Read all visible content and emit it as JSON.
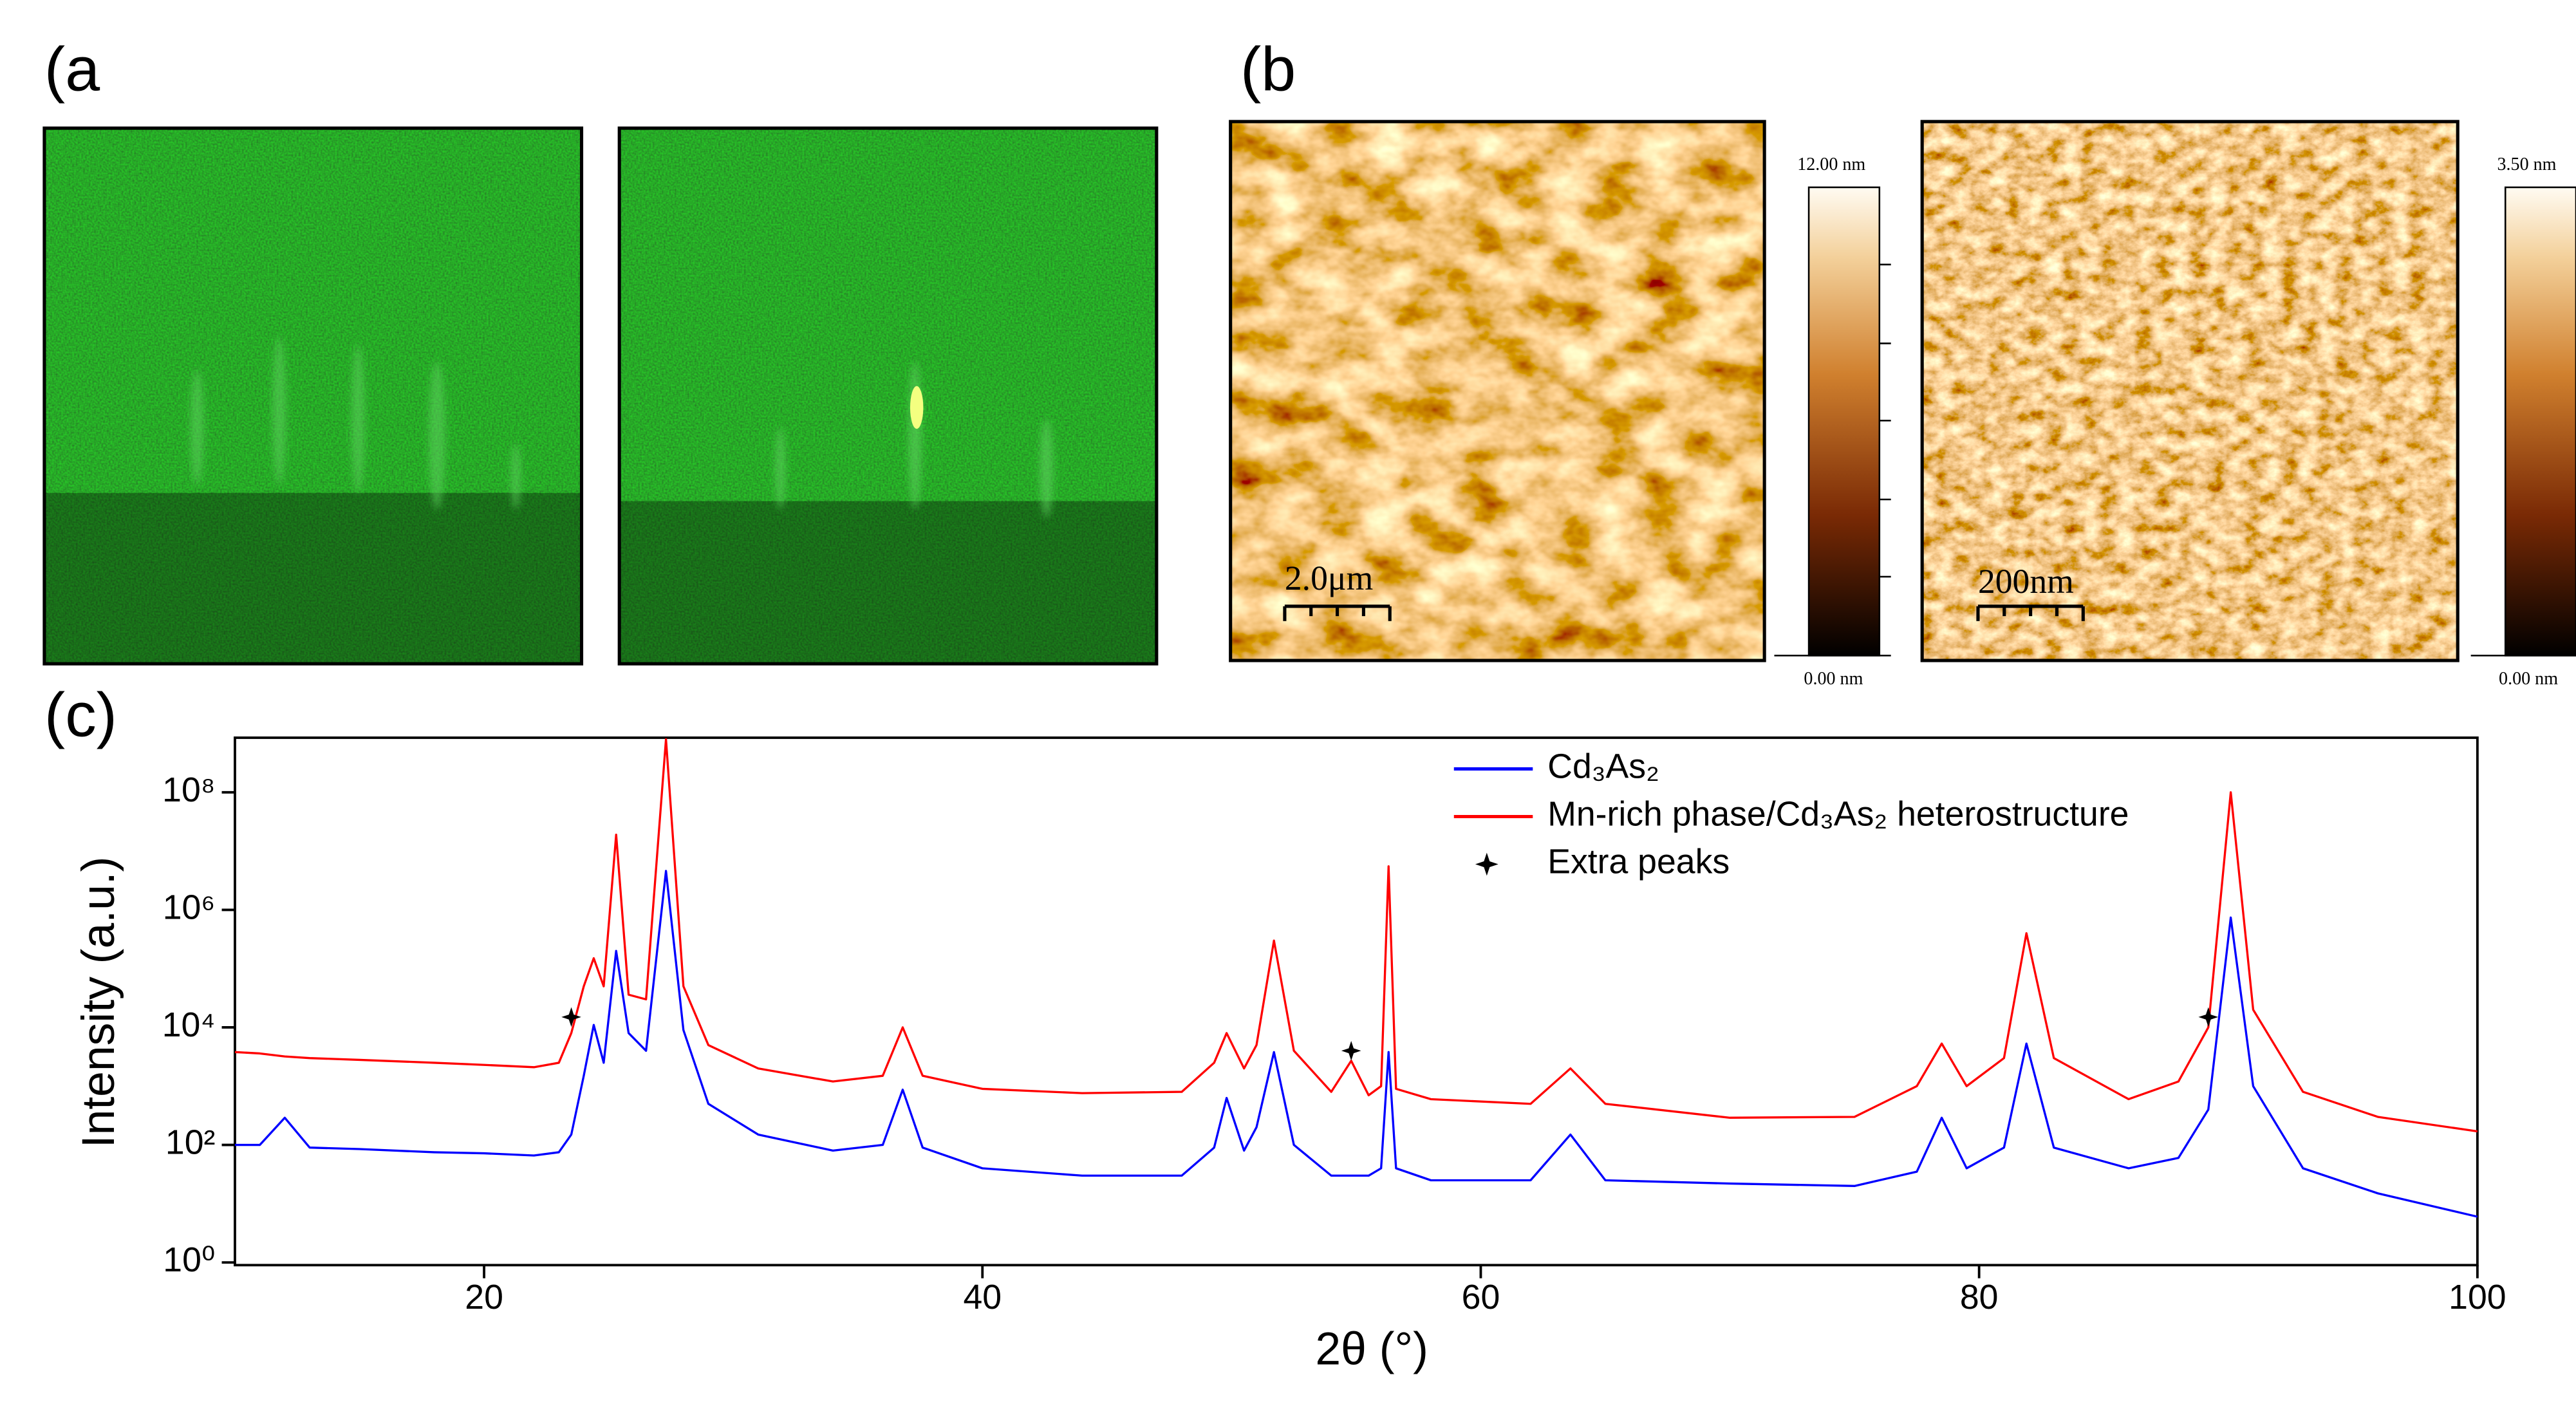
{
  "panel_labels": {
    "a": "(a",
    "a_close": ")",
    "b": "(b",
    "c": "(c)"
  },
  "afm": [
    {
      "scale_bar": "2.0μm",
      "colorbar_max": "12.00 nm",
      "colorbar_min": "0.00 nm"
    },
    {
      "scale_bar": "200nm",
      "colorbar_max": "3.50 nm",
      "colorbar_min": "0.00 nm"
    }
  ],
  "chart_data": {
    "type": "line",
    "xlabel": "2θ (°)",
    "ylabel": "Intensity (a.u.)",
    "yscale": "log",
    "xlim": [
      10,
      100
    ],
    "ylim": [
      0.9,
      850000000
    ],
    "xticks": [
      20,
      40,
      60,
      80,
      100
    ],
    "yticks": [
      {
        "value": 1,
        "label": "10⁰"
      },
      {
        "value": 100,
        "label": "10²"
      },
      {
        "value": 10000,
        "label": "10⁴"
      },
      {
        "value": 1000000,
        "label": "10⁶"
      },
      {
        "value": 100000000,
        "label": "10⁸"
      }
    ],
    "x": [
      10,
      11,
      12,
      13,
      15,
      18,
      20,
      22,
      23,
      23.5,
      24,
      24.4,
      24.8,
      25.3,
      25.8,
      26.5,
      27.3,
      28,
      29,
      31,
      34,
      36,
      36.8,
      37.6,
      40,
      44,
      48,
      49.3,
      49.8,
      50.5,
      51,
      51.7,
      52.5,
      54,
      54.8,
      55.5,
      56,
      56.3,
      56.6,
      58,
      62,
      63.6,
      65,
      70,
      75,
      77.5,
      78.5,
      79.5,
      81,
      81.9,
      83,
      86,
      88,
      89.2,
      90.1,
      91,
      93,
      96,
      100
    ],
    "series": [
      {
        "name": "Cd₃As₂",
        "color": "#0000ff",
        "values": [
          100,
          100,
          290,
          90,
          85,
          75,
          72,
          66,
          75,
          150,
          1500,
          11000,
          2500,
          200000,
          8000,
          4000,
          4600000,
          9000,
          500,
          150,
          80,
          100,
          870,
          90,
          40,
          30,
          30,
          90,
          630,
          80,
          200,
          3800,
          100,
          30,
          30,
          30,
          40,
          3800,
          40,
          25,
          25,
          150,
          25,
          22,
          20,
          35,
          290,
          40,
          90,
          5300,
          90,
          40,
          60,
          400,
          740000,
          1000,
          40,
          15,
          6
        ]
      },
      {
        "name": "Mn-rich phase/Cd₃As₂ heterostructure",
        "color": "#ff0000",
        "values": [
          3800,
          3600,
          3200,
          3000,
          2800,
          2500,
          2300,
          2100,
          2500,
          8000,
          50000,
          150000,
          50000,
          19000000,
          36000,
          30000,
          800000000,
          50000,
          5000,
          2000,
          1200,
          1500,
          10000,
          1500,
          900,
          760,
          800,
          2500,
          8000,
          2000,
          5000,
          300000,
          4000,
          800,
          2700,
          700,
          1000,
          5500000,
          900,
          600,
          500,
          2000,
          500,
          290,
          300,
          1000,
          5300,
          1000,
          3000,
          400000,
          3000,
          600,
          1200,
          10000,
          100000000,
          20000,
          800,
          300,
          170
        ]
      }
    ],
    "markers": {
      "name": "Extra peaks",
      "color": "#000000",
      "x": [
        23.5,
        54.8,
        89.2
      ],
      "values": [
        15000,
        4000,
        15000
      ]
    }
  }
}
